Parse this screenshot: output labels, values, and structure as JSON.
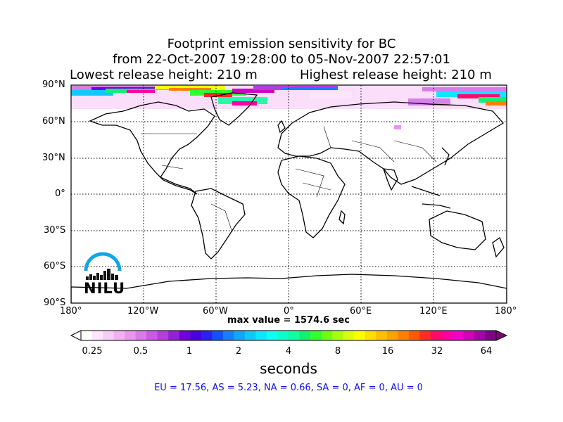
{
  "header": {
    "title_line1": "Footprint emission sensitivity for BC",
    "title_line2": "from 22-Oct-2007 19:28:00 to 05-Nov-2007 22:57:01",
    "lowest_release": "Lowest release height: 210 m",
    "highest_release": "Highest release height: 210 m"
  },
  "map": {
    "lat_labels": [
      "90°N",
      "60°N",
      "30°N",
      "0°",
      "30°S",
      "60°S",
      "90°S"
    ],
    "lon_labels": [
      "180°",
      "120°W",
      "60°W",
      "0°",
      "60°E",
      "120°E",
      "180°"
    ],
    "projection": "equirectangular",
    "gridlines": "dotted"
  },
  "max_value": "max value = 1574.6 sec",
  "colorbar": {
    "ticks": [
      "0.25",
      "0.5",
      "1",
      "2",
      "4",
      "8",
      "16",
      "32",
      "64"
    ],
    "label": "seconds",
    "colors": [
      "#ffffff",
      "#fde6fd",
      "#f9cdf9",
      "#f2b2f2",
      "#e896ee",
      "#d97be8",
      "#c85ae4",
      "#b23ee0",
      "#9420df",
      "#7000dc",
      "#4a00e0",
      "#2a20f0",
      "#1550ff",
      "#1280ff",
      "#10a8ff",
      "#10c8ff",
      "#10e6ff",
      "#10ffee",
      "#10ffc8",
      "#10ffa0",
      "#12f070",
      "#30ff30",
      "#70ff10",
      "#a8ff10",
      "#d8ff10",
      "#ffff00",
      "#ffe000",
      "#ffc000",
      "#ffa000",
      "#ff8000",
      "#ff5a00",
      "#ff2a2a",
      "#ff0a6a",
      "#ff00a0",
      "#f000c8",
      "#d000c0",
      "#a800a8",
      "#800080"
    ]
  },
  "regions": "EU = 17.56,  AS = 5.23,  NA = 0.66,  SA = 0,  AF = 0,  AU = 0",
  "logo": {
    "text": "NILU"
  }
}
